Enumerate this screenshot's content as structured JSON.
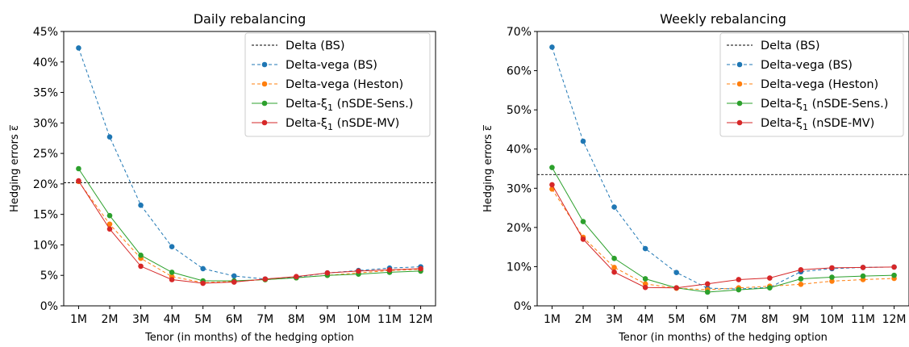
{
  "chart_data": [
    {
      "type": "line",
      "title": "Daily rebalancing",
      "xlabel": "Tenor (in months) of the hedging option",
      "ylabel": "Hedging errors ε̅",
      "categories": [
        "1M",
        "2M",
        "3M",
        "4M",
        "5M",
        "6M",
        "7M",
        "8M",
        "9M",
        "10M",
        "11M",
        "12M"
      ],
      "ylim": [
        0,
        45
      ],
      "yticks": [
        0,
        5,
        10,
        15,
        20,
        25,
        30,
        35,
        40,
        45
      ],
      "ytick_labels": [
        "0%",
        "5%",
        "10%",
        "15%",
        "20%",
        "25%",
        "30%",
        "35%",
        "40%",
        "45%"
      ],
      "grid": false,
      "legend_position": "top-right",
      "series": [
        {
          "name": "Delta (BS)",
          "kind": "hline",
          "value": 20.2,
          "color": "#000000",
          "dash": "3,2"
        },
        {
          "name": "Delta-vega (BS)",
          "color": "#1f77b4",
          "dash": "4,3",
          "values": [
            42.3,
            27.7,
            16.5,
            9.7,
            6.1,
            4.9,
            4.4,
            4.7,
            5.4,
            5.8,
            6.2,
            6.4
          ]
        },
        {
          "name": "Delta-vega (Heston)",
          "color": "#ff7f0e",
          "dash": "4,3",
          "values": [
            20.4,
            13.4,
            7.8,
            4.8,
            3.8,
            4.0,
            4.3,
            4.6,
            5.0,
            5.4,
            5.8,
            6.0
          ]
        },
        {
          "name": "Delta-ξ1 (nSDE-Sens.)",
          "color": "#2ca02c",
          "dash": "",
          "values": [
            22.5,
            14.8,
            8.3,
            5.5,
            4.1,
            4.1,
            4.3,
            4.6,
            5.0,
            5.2,
            5.5,
            5.7
          ]
        },
        {
          "name": "Delta-ξ1 (nSDE-MV)",
          "color": "#d62728",
          "dash": "",
          "values": [
            20.5,
            12.6,
            6.5,
            4.3,
            3.7,
            3.9,
            4.4,
            4.8,
            5.4,
            5.7,
            5.9,
            6.1
          ]
        }
      ]
    },
    {
      "type": "line",
      "title": "Weekly rebalancing",
      "xlabel": "Tenor (in months) of the hedging option",
      "ylabel": "Hedging errors ε̅",
      "categories": [
        "1M",
        "2M",
        "3M",
        "4M",
        "5M",
        "6M",
        "7M",
        "8M",
        "9M",
        "10M",
        "11M",
        "12M"
      ],
      "ylim": [
        0,
        70
      ],
      "yticks": [
        0,
        10,
        20,
        30,
        40,
        50,
        60,
        70
      ],
      "ytick_labels": [
        "0%",
        "10%",
        "20%",
        "30%",
        "40%",
        "50%",
        "60%",
        "70%"
      ],
      "grid": false,
      "legend_position": "top-right",
      "series": [
        {
          "name": "Delta (BS)",
          "kind": "hline",
          "value": 33.5,
          "color": "#000000",
          "dash": "3,2"
        },
        {
          "name": "Delta-vega (BS)",
          "color": "#1f77b4",
          "dash": "4,3",
          "values": [
            66.0,
            42.0,
            25.2,
            14.6,
            8.5,
            4.5,
            4.3,
            4.7,
            8.7,
            9.5,
            9.8,
            9.9
          ]
        },
        {
          "name": "Delta-vega (Heston)",
          "color": "#ff7f0e",
          "dash": "4,3",
          "values": [
            29.8,
            17.5,
            9.8,
            5.6,
            4.5,
            4.1,
            4.6,
            5.0,
            5.5,
            6.3,
            6.7,
            7.0
          ]
        },
        {
          "name": "Delta-ξ1 (nSDE-Sens.)",
          "color": "#2ca02c",
          "dash": "",
          "values": [
            35.3,
            21.5,
            12.1,
            6.9,
            4.6,
            3.5,
            4.1,
            4.6,
            6.9,
            7.3,
            7.6,
            7.8
          ]
        },
        {
          "name": "Delta-ξ1 (nSDE-MV)",
          "color": "#d62728",
          "dash": "",
          "values": [
            30.9,
            17.0,
            8.6,
            4.7,
            4.6,
            5.6,
            6.7,
            7.1,
            9.2,
            9.7,
            9.8,
            9.9
          ]
        }
      ]
    }
  ]
}
